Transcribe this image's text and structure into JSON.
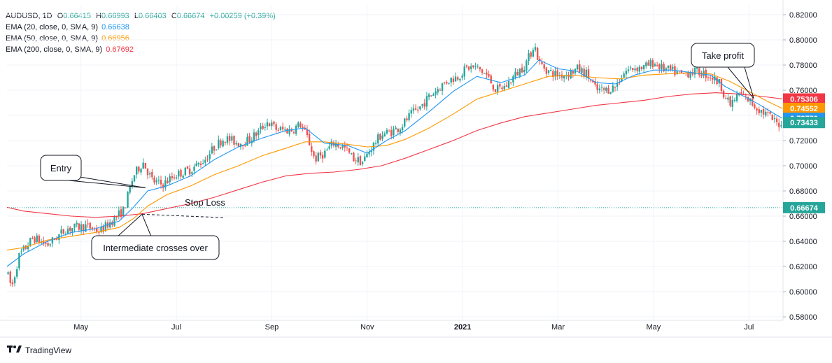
{
  "legend": {
    "symbol": "AUDUSD, 1D",
    "open_label": "O",
    "open": "0.66415",
    "high_label": "H",
    "high": "0.66993",
    "low_label": "L",
    "low": "0.66403",
    "close_label": "C",
    "close": "0.66674",
    "change": "+0.00259 (+0.39%)",
    "ema20_label": "EMA (20, close, 0, SMA, 9)",
    "ema20_value": "0.66638",
    "ema50_label": "EMA (50, close, 0, SMA, 9)",
    "ema50_value": "0.66956",
    "ema200_label": "EMA (200, close, 0, SMA, 9)",
    "ema200_value": "0.67692"
  },
  "colors": {
    "up": "#26a69a",
    "down": "#ef5350",
    "ema20": "#2196f3",
    "ema50": "#ff9800",
    "ema200": "#f23645",
    "change_text": "#26a69a",
    "grid": "#f0f3fa",
    "axis_text": "#131722",
    "stop_line": "#26a69a"
  },
  "branding": {
    "name": "TradingView"
  },
  "chart_data": {
    "type": "candlestick",
    "ylim": [
      0.58,
      0.82
    ],
    "y_ticks": [
      "0.82000",
      "0.80000",
      "0.78000",
      "0.76000",
      "0.74000",
      "0.72000",
      "0.70000",
      "0.68000",
      "0.66000",
      "0.64000",
      "0.62000",
      "0.60000",
      "0.58000"
    ],
    "x_ticks": [
      {
        "label": "May",
        "x": 2.2,
        "bold": false
      },
      {
        "label": "Jul",
        "x": 4.2,
        "bold": false
      },
      {
        "label": "Sep",
        "x": 6.2,
        "bold": false
      },
      {
        "label": "Nov",
        "x": 8.2,
        "bold": false
      },
      {
        "label": "2021",
        "x": 10.2,
        "bold": true
      },
      {
        "label": "Mar",
        "x": 12.2,
        "bold": false
      },
      {
        "label": "May",
        "x": 14.2,
        "bold": false
      },
      {
        "label": "Jul",
        "x": 16.2,
        "bold": false
      }
    ],
    "x_range": [
      0.65,
      16.9
    ],
    "price_path": [
      [
        0.65,
        0.615
      ],
      [
        0.75,
        0.603
      ],
      [
        0.9,
        0.628
      ],
      [
        1.2,
        0.643
      ],
      [
        1.5,
        0.637
      ],
      [
        1.9,
        0.65
      ],
      [
        2.3,
        0.652
      ],
      [
        2.6,
        0.648
      ],
      [
        2.9,
        0.658
      ],
      [
        3.1,
        0.665
      ],
      [
        3.3,
        0.692
      ],
      [
        3.5,
        0.703
      ],
      [
        3.7,
        0.688
      ],
      [
        3.9,
        0.685
      ],
      [
        4.2,
        0.693
      ],
      [
        4.5,
        0.697
      ],
      [
        4.8,
        0.705
      ],
      [
        5.0,
        0.715
      ],
      [
        5.2,
        0.722
      ],
      [
        5.5,
        0.718
      ],
      [
        5.7,
        0.72
      ],
      [
        5.9,
        0.726
      ],
      [
        6.1,
        0.735
      ],
      [
        6.3,
        0.729
      ],
      [
        6.6,
        0.728
      ],
      [
        6.8,
        0.733
      ],
      [
        6.95,
        0.722
      ],
      [
        7.1,
        0.705
      ],
      [
        7.3,
        0.71
      ],
      [
        7.5,
        0.718
      ],
      [
        7.7,
        0.715
      ],
      [
        7.9,
        0.706
      ],
      [
        8.1,
        0.703
      ],
      [
        8.3,
        0.715
      ],
      [
        8.5,
        0.725
      ],
      [
        8.7,
        0.727
      ],
      [
        8.9,
        0.731
      ],
      [
        9.1,
        0.74
      ],
      [
        9.3,
        0.746
      ],
      [
        9.5,
        0.755
      ],
      [
        9.7,
        0.762
      ],
      [
        9.9,
        0.768
      ],
      [
        10.1,
        0.771
      ],
      [
        10.3,
        0.778
      ],
      [
        10.5,
        0.778
      ],
      [
        10.7,
        0.772
      ],
      [
        10.9,
        0.76
      ],
      [
        11.1,
        0.763
      ],
      [
        11.3,
        0.772
      ],
      [
        11.5,
        0.78
      ],
      [
        11.6,
        0.787
      ],
      [
        11.7,
        0.797
      ],
      [
        11.8,
        0.782
      ],
      [
        12.0,
        0.775
      ],
      [
        12.2,
        0.772
      ],
      [
        12.4,
        0.773
      ],
      [
        12.6,
        0.777
      ],
      [
        12.8,
        0.773
      ],
      [
        13.0,
        0.76
      ],
      [
        13.2,
        0.76
      ],
      [
        13.4,
        0.763
      ],
      [
        13.6,
        0.775
      ],
      [
        13.8,
        0.778
      ],
      [
        14.0,
        0.778
      ],
      [
        14.2,
        0.782
      ],
      [
        14.4,
        0.777
      ],
      [
        14.6,
        0.775
      ],
      [
        14.8,
        0.772
      ],
      [
        15.0,
        0.775
      ],
      [
        15.2,
        0.774
      ],
      [
        15.4,
        0.771
      ],
      [
        15.6,
        0.765
      ],
      [
        15.7,
        0.755
      ],
      [
        15.8,
        0.748
      ],
      [
        16.0,
        0.757
      ],
      [
        16.2,
        0.752
      ],
      [
        16.4,
        0.745
      ],
      [
        16.6,
        0.74
      ],
      [
        16.8,
        0.733
      ],
      [
        16.9,
        0.735
      ]
    ],
    "ema20": [
      [
        0.65,
        0.62
      ],
      [
        1.0,
        0.63
      ],
      [
        1.5,
        0.64
      ],
      [
        2.0,
        0.647
      ],
      [
        2.5,
        0.65
      ],
      [
        3.0,
        0.656
      ],
      [
        3.3,
        0.667
      ],
      [
        3.6,
        0.68
      ],
      [
        4.0,
        0.684
      ],
      [
        4.5,
        0.692
      ],
      [
        5.0,
        0.705
      ],
      [
        5.5,
        0.715
      ],
      [
        6.0,
        0.722
      ],
      [
        6.5,
        0.728
      ],
      [
        6.9,
        0.73
      ],
      [
        7.3,
        0.718
      ],
      [
        7.8,
        0.716
      ],
      [
        8.2,
        0.71
      ],
      [
        8.6,
        0.72
      ],
      [
        9.0,
        0.728
      ],
      [
        9.5,
        0.743
      ],
      [
        10.0,
        0.759
      ],
      [
        10.5,
        0.771
      ],
      [
        11.0,
        0.766
      ],
      [
        11.5,
        0.772
      ],
      [
        11.8,
        0.784
      ],
      [
        12.2,
        0.777
      ],
      [
        12.6,
        0.775
      ],
      [
        13.0,
        0.766
      ],
      [
        13.4,
        0.765
      ],
      [
        13.8,
        0.772
      ],
      [
        14.2,
        0.776
      ],
      [
        14.6,
        0.776
      ],
      [
        15.0,
        0.774
      ],
      [
        15.4,
        0.772
      ],
      [
        15.7,
        0.763
      ],
      [
        16.0,
        0.757
      ],
      [
        16.4,
        0.749
      ],
      [
        16.7,
        0.742
      ],
      [
        16.9,
        0.7377
      ]
    ],
    "ema50": [
      [
        0.65,
        0.633
      ],
      [
        1.0,
        0.635
      ],
      [
        1.5,
        0.641
      ],
      [
        2.0,
        0.644
      ],
      [
        2.5,
        0.647
      ],
      [
        3.0,
        0.651
      ],
      [
        3.3,
        0.658
      ],
      [
        3.6,
        0.668
      ],
      [
        4.0,
        0.677
      ],
      [
        4.5,
        0.684
      ],
      [
        5.0,
        0.693
      ],
      [
        5.5,
        0.7
      ],
      [
        6.0,
        0.708
      ],
      [
        6.5,
        0.714
      ],
      [
        6.9,
        0.719
      ],
      [
        7.3,
        0.719
      ],
      [
        7.8,
        0.717
      ],
      [
        8.2,
        0.715
      ],
      [
        8.6,
        0.716
      ],
      [
        9.0,
        0.721
      ],
      [
        9.5,
        0.73
      ],
      [
        10.0,
        0.741
      ],
      [
        10.5,
        0.753
      ],
      [
        11.0,
        0.759
      ],
      [
        11.5,
        0.765
      ],
      [
        12.0,
        0.771
      ],
      [
        12.5,
        0.772
      ],
      [
        13.0,
        0.77
      ],
      [
        13.5,
        0.769
      ],
      [
        14.0,
        0.772
      ],
      [
        14.5,
        0.773
      ],
      [
        15.0,
        0.774
      ],
      [
        15.4,
        0.773
      ],
      [
        15.8,
        0.767
      ],
      [
        16.2,
        0.759
      ],
      [
        16.6,
        0.751
      ],
      [
        16.9,
        0.7455
      ]
    ],
    "ema200": [
      [
        0.65,
        0.667
      ],
      [
        1.0,
        0.664
      ],
      [
        1.5,
        0.662
      ],
      [
        2.0,
        0.66
      ],
      [
        2.5,
        0.659
      ],
      [
        3.0,
        0.66
      ],
      [
        3.5,
        0.662
      ],
      [
        4.0,
        0.666
      ],
      [
        4.5,
        0.67
      ],
      [
        5.0,
        0.675
      ],
      [
        5.5,
        0.681
      ],
      [
        6.0,
        0.687
      ],
      [
        6.5,
        0.692
      ],
      [
        7.0,
        0.694
      ],
      [
        7.5,
        0.695
      ],
      [
        8.0,
        0.697
      ],
      [
        8.5,
        0.7
      ],
      [
        9.0,
        0.706
      ],
      [
        9.5,
        0.713
      ],
      [
        10.0,
        0.72
      ],
      [
        10.5,
        0.728
      ],
      [
        11.0,
        0.734
      ],
      [
        11.5,
        0.739
      ],
      [
        12.0,
        0.742
      ],
      [
        12.5,
        0.745
      ],
      [
        13.0,
        0.748
      ],
      [
        13.5,
        0.75
      ],
      [
        14.0,
        0.752
      ],
      [
        14.5,
        0.755
      ],
      [
        15.0,
        0.757
      ],
      [
        15.5,
        0.758
      ],
      [
        16.0,
        0.757
      ],
      [
        16.5,
        0.755
      ],
      [
        16.9,
        0.7531
      ]
    ],
    "price_labels": [
      {
        "text": "0.75306",
        "value": 0.75306,
        "color": "#f23645"
      },
      {
        "text": "0.74552",
        "value": 0.74552,
        "color": "#ff9800"
      },
      {
        "text": "0.73770",
        "value": 0.7377,
        "color": "#2196f3"
      },
      {
        "text": "0.73433",
        "value": 0.73433,
        "color": "#26a69a"
      },
      {
        "text": "0.66674",
        "value": 0.66674,
        "color": "#26a69a"
      }
    ],
    "stop_loss_level": 0.66674,
    "annotations": {
      "entry": "Entry",
      "take_profit": "Take profit",
      "intermediate": "Intermediate crosses over",
      "stop_loss": "Stop Loss"
    }
  }
}
